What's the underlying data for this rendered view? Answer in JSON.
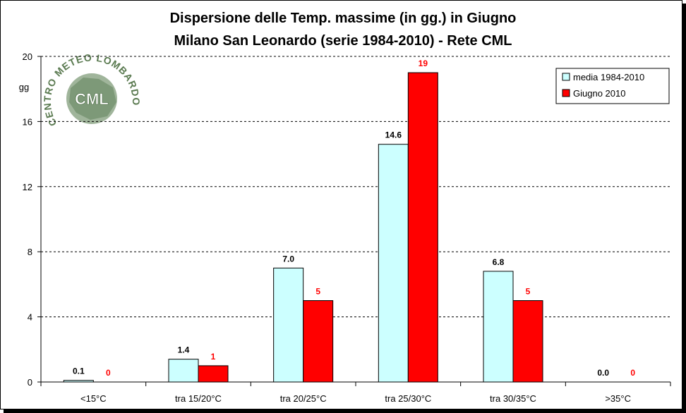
{
  "chart_data": {
    "type": "bar",
    "title_line1": "Dispersione delle Temp. massime (in gg.) in Giugno",
    "title_line2": "Milano San Leonardo (serie 1984-2010) - Rete CML",
    "ylabel": "gg",
    "ylim": [
      0,
      20
    ],
    "yticks": [
      0,
      4,
      8,
      12,
      16,
      20
    ],
    "grid": true,
    "legend_position": "top-right",
    "categories": [
      "<15°C",
      "tra 15/20°C",
      "tra 20/25°C",
      "tra 25/30°C",
      "tra 30/35°C",
      ">35°C"
    ],
    "series": [
      {
        "name": "media 1984-2010",
        "color": "#ccffff",
        "label_color": "#000000",
        "values": [
          0.1,
          1.4,
          7.0,
          14.6,
          6.8,
          0.0
        ],
        "labels": [
          "0.1",
          "1.4",
          "7.0",
          "14.6",
          "6.8",
          "0.0"
        ]
      },
      {
        "name": "Giugno 2010",
        "color": "#ff0000",
        "label_color": "#ff0000",
        "values": [
          0,
          1,
          5,
          19,
          5,
          0
        ],
        "labels": [
          "0",
          "1",
          "5",
          "19",
          "5",
          "0"
        ]
      }
    ]
  },
  "logo": {
    "text_top": "CENTRO METEO LOMBARDO",
    "center": "CML",
    "icon": "region-map-icon"
  }
}
